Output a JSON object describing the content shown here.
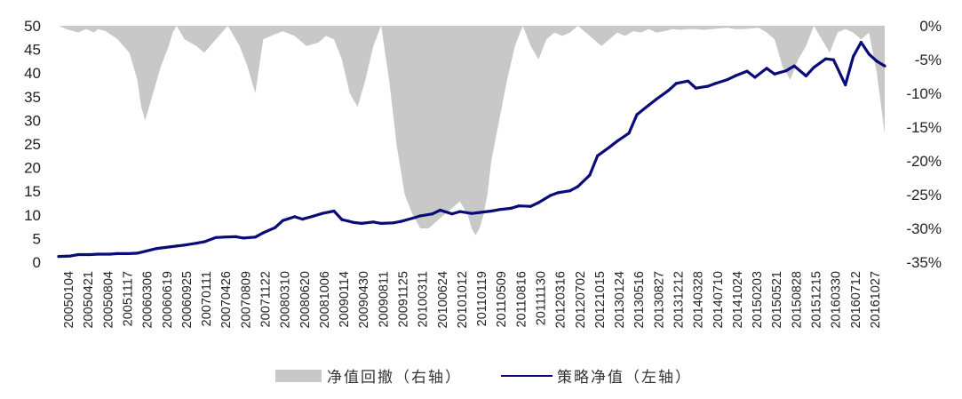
{
  "chart_data": {
    "type": "line",
    "title": "",
    "left_axis": {
      "ylim": [
        0,
        50
      ],
      "ticks": [
        "0",
        "5",
        "10",
        "15",
        "20",
        "25",
        "30",
        "35",
        "40",
        "45",
        "50"
      ]
    },
    "right_axis": {
      "ylim": [
        -35,
        0
      ],
      "ticks": [
        "0%",
        "-5%",
        "-10%",
        "-15%",
        "-20%",
        "-25%",
        "-30%",
        "-35%"
      ]
    },
    "x_ticks": [
      "20050104",
      "20050421",
      "20050804",
      "20051117",
      "20060306",
      "20060619",
      "20060925",
      "20070111",
      "20070426",
      "20070809",
      "20071122",
      "20080310",
      "20080620",
      "20081006",
      "20090114",
      "20090430",
      "20090811",
      "20091125",
      "20100311",
      "20100624",
      "20101012",
      "20110119",
      "20110509",
      "20110816",
      "20111130",
      "20120316",
      "20120702",
      "20121015",
      "20130124",
      "20130516",
      "20130827",
      "20131212",
      "20140328",
      "20140710",
      "20141024",
      "20150203",
      "20150521",
      "20150828",
      "20151215",
      "20160330",
      "20160712",
      "20161027"
    ],
    "legend_position": "bottom-center",
    "series": [
      {
        "name": "净值回撤（右轴）",
        "type": "area",
        "axis": "right",
        "color": "#c8c8c8",
        "x": [
          0,
          2,
          5,
          7,
          9,
          10,
          12,
          15,
          18,
          20,
          21,
          22,
          24,
          26,
          28,
          29,
          30,
          32,
          35,
          37,
          40,
          43,
          46,
          48,
          50,
          52,
          54,
          57,
          60,
          63,
          66,
          68,
          70,
          72,
          74,
          76,
          78,
          80,
          82,
          84,
          86,
          88,
          90,
          92,
          94,
          96,
          98,
          100,
          102,
          104,
          105,
          106,
          107,
          108,
          109,
          110,
          112,
          114,
          116,
          118,
          120,
          122,
          124,
          126,
          128,
          130,
          132,
          134,
          136,
          138,
          140,
          142,
          144,
          146,
          148,
          150,
          152,
          154,
          156,
          158,
          160,
          162,
          164,
          166,
          168,
          170,
          172,
          174,
          176,
          178,
          180,
          182,
          184,
          186,
          188,
          190,
          192,
          194,
          196,
          198,
          200,
          202,
          204,
          206,
          208,
          210
        ],
        "values": [
          0,
          -0.5,
          -1,
          -0.5,
          -1,
          -0.5,
          -0.8,
          -2,
          -4,
          -8,
          -12,
          -14,
          -10,
          -6,
          -3,
          -1,
          0,
          -2,
          -3,
          -4,
          -2,
          0,
          -3,
          -6,
          -10,
          -2,
          -1.5,
          -0.8,
          -1.5,
          -3,
          -2.5,
          -1.5,
          -2,
          -5,
          -10,
          -12,
          -8,
          -3,
          0,
          -8,
          -18,
          -25,
          -28,
          -30,
          -30,
          -29,
          -28,
          -27,
          -26,
          -28,
          -30,
          -31,
          -30,
          -28,
          -25,
          -20,
          -14,
          -8,
          -3,
          0,
          -3,
          -5,
          -2,
          -1,
          -1.5,
          -1,
          0,
          -1,
          -2,
          -3,
          -2,
          -1,
          -1.5,
          -0.8,
          -1,
          -0.5,
          -1,
          -0.8,
          -0.5,
          -0.6,
          -0.5,
          -0.5,
          -0.6,
          -0.5,
          -0.4,
          -0.3,
          -0.5,
          -0.5,
          -0.4,
          -0.3,
          -1,
          -2,
          -6,
          -8,
          -5,
          -3,
          0,
          -2,
          -4,
          -1,
          -0.5,
          -1,
          -2,
          -1,
          -7,
          -16
        ]
      },
      {
        "name": "策略净值（左轴）",
        "type": "line",
        "axis": "left",
        "color": "#0a0a78",
        "x": [
          0,
          3,
          5,
          8,
          10,
          13,
          15,
          18,
          20,
          22,
          25,
          27,
          30,
          32,
          35,
          37,
          40,
          42,
          45,
          47,
          50,
          52,
          55,
          57,
          60,
          62,
          65,
          67,
          70,
          72,
          75,
          77,
          80,
          82,
          85,
          87,
          90,
          92,
          95,
          97,
          100,
          102,
          105,
          107,
          110,
          112,
          115,
          117,
          120,
          122,
          125,
          127,
          130,
          132,
          135,
          137,
          140,
          142,
          145,
          147,
          150,
          152,
          155,
          157,
          160,
          162,
          165,
          167,
          170,
          172,
          175,
          177,
          180,
          182,
          185,
          187,
          190,
          192,
          195,
          197,
          200,
          202,
          204,
          206,
          208,
          210
        ],
        "values": [
          1.2,
          1.3,
          1.6,
          1.6,
          1.7,
          1.7,
          1.8,
          1.8,
          1.9,
          2.3,
          2.9,
          3.1,
          3.4,
          3.6,
          4.0,
          4.3,
          5.2,
          5.3,
          5.4,
          5.1,
          5.3,
          6.2,
          7.3,
          8.8,
          9.6,
          9.1,
          9.8,
          10.3,
          10.8,
          9.0,
          8.4,
          8.2,
          8.5,
          8.2,
          8.3,
          8.6,
          9.3,
          9.8,
          10.2,
          11.0,
          10.2,
          10.7,
          10.3,
          10.5,
          10.8,
          11.1,
          11.4,
          11.9,
          11.8,
          12.6,
          14.1,
          14.7,
          15.1,
          16.0,
          18.4,
          22.5,
          24.3,
          25.6,
          27.3,
          31.2,
          33.2,
          34.5,
          36.3,
          37.8,
          38.3,
          36.8,
          37.2,
          37.8,
          38.6,
          39.4,
          40.4,
          39.1,
          41.0,
          39.8,
          40.5,
          41.5,
          39.4,
          41.2,
          43.0,
          42.8,
          37.5,
          43.5,
          46.5,
          44.0,
          42.5,
          41.5
        ]
      }
    ]
  },
  "legend": {
    "drawdown_label": "净值回撤（右轴）",
    "nav_label": "策略净值（左轴）"
  }
}
